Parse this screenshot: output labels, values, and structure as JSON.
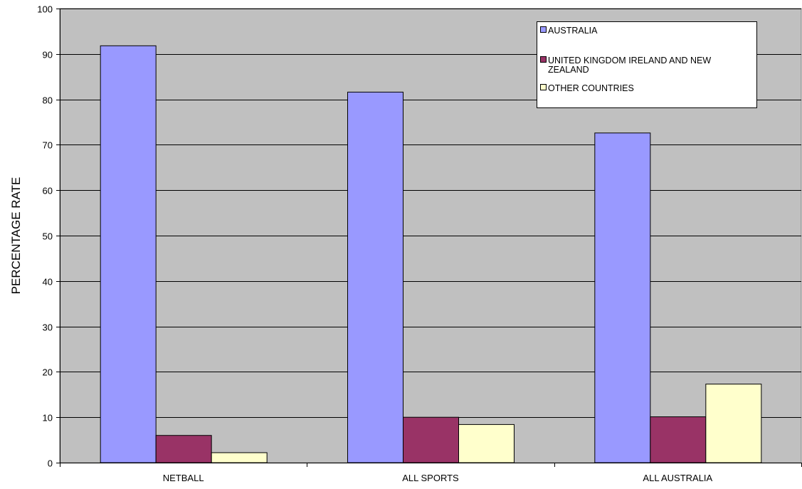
{
  "chart_data": {
    "type": "bar",
    "title": "",
    "xlabel": "",
    "ylabel": "PERCENTAGE RATE",
    "ylim": [
      0,
      100
    ],
    "yticks": [
      0,
      10,
      20,
      30,
      40,
      50,
      60,
      70,
      80,
      90,
      100
    ],
    "grid": true,
    "legend_position": "top-right",
    "categories": [
      "NETBALL",
      "ALL SPORTS",
      "ALL AUSTRALIA"
    ],
    "series": [
      {
        "name": "AUSTRALIA",
        "color": "#9999ff",
        "values": [
          91.8,
          81.6,
          72.6
        ]
      },
      {
        "name": "UNITED KINGDOM IRELAND AND NEW ZEALAND",
        "color": "#993366",
        "values": [
          6.0,
          10.0,
          10.1
        ]
      },
      {
        "name": "OTHER COUNTRIES",
        "color": "#ffffcc",
        "values": [
          2.2,
          8.4,
          17.3
        ]
      }
    ],
    "plot_background": "#c0c0c0"
  }
}
